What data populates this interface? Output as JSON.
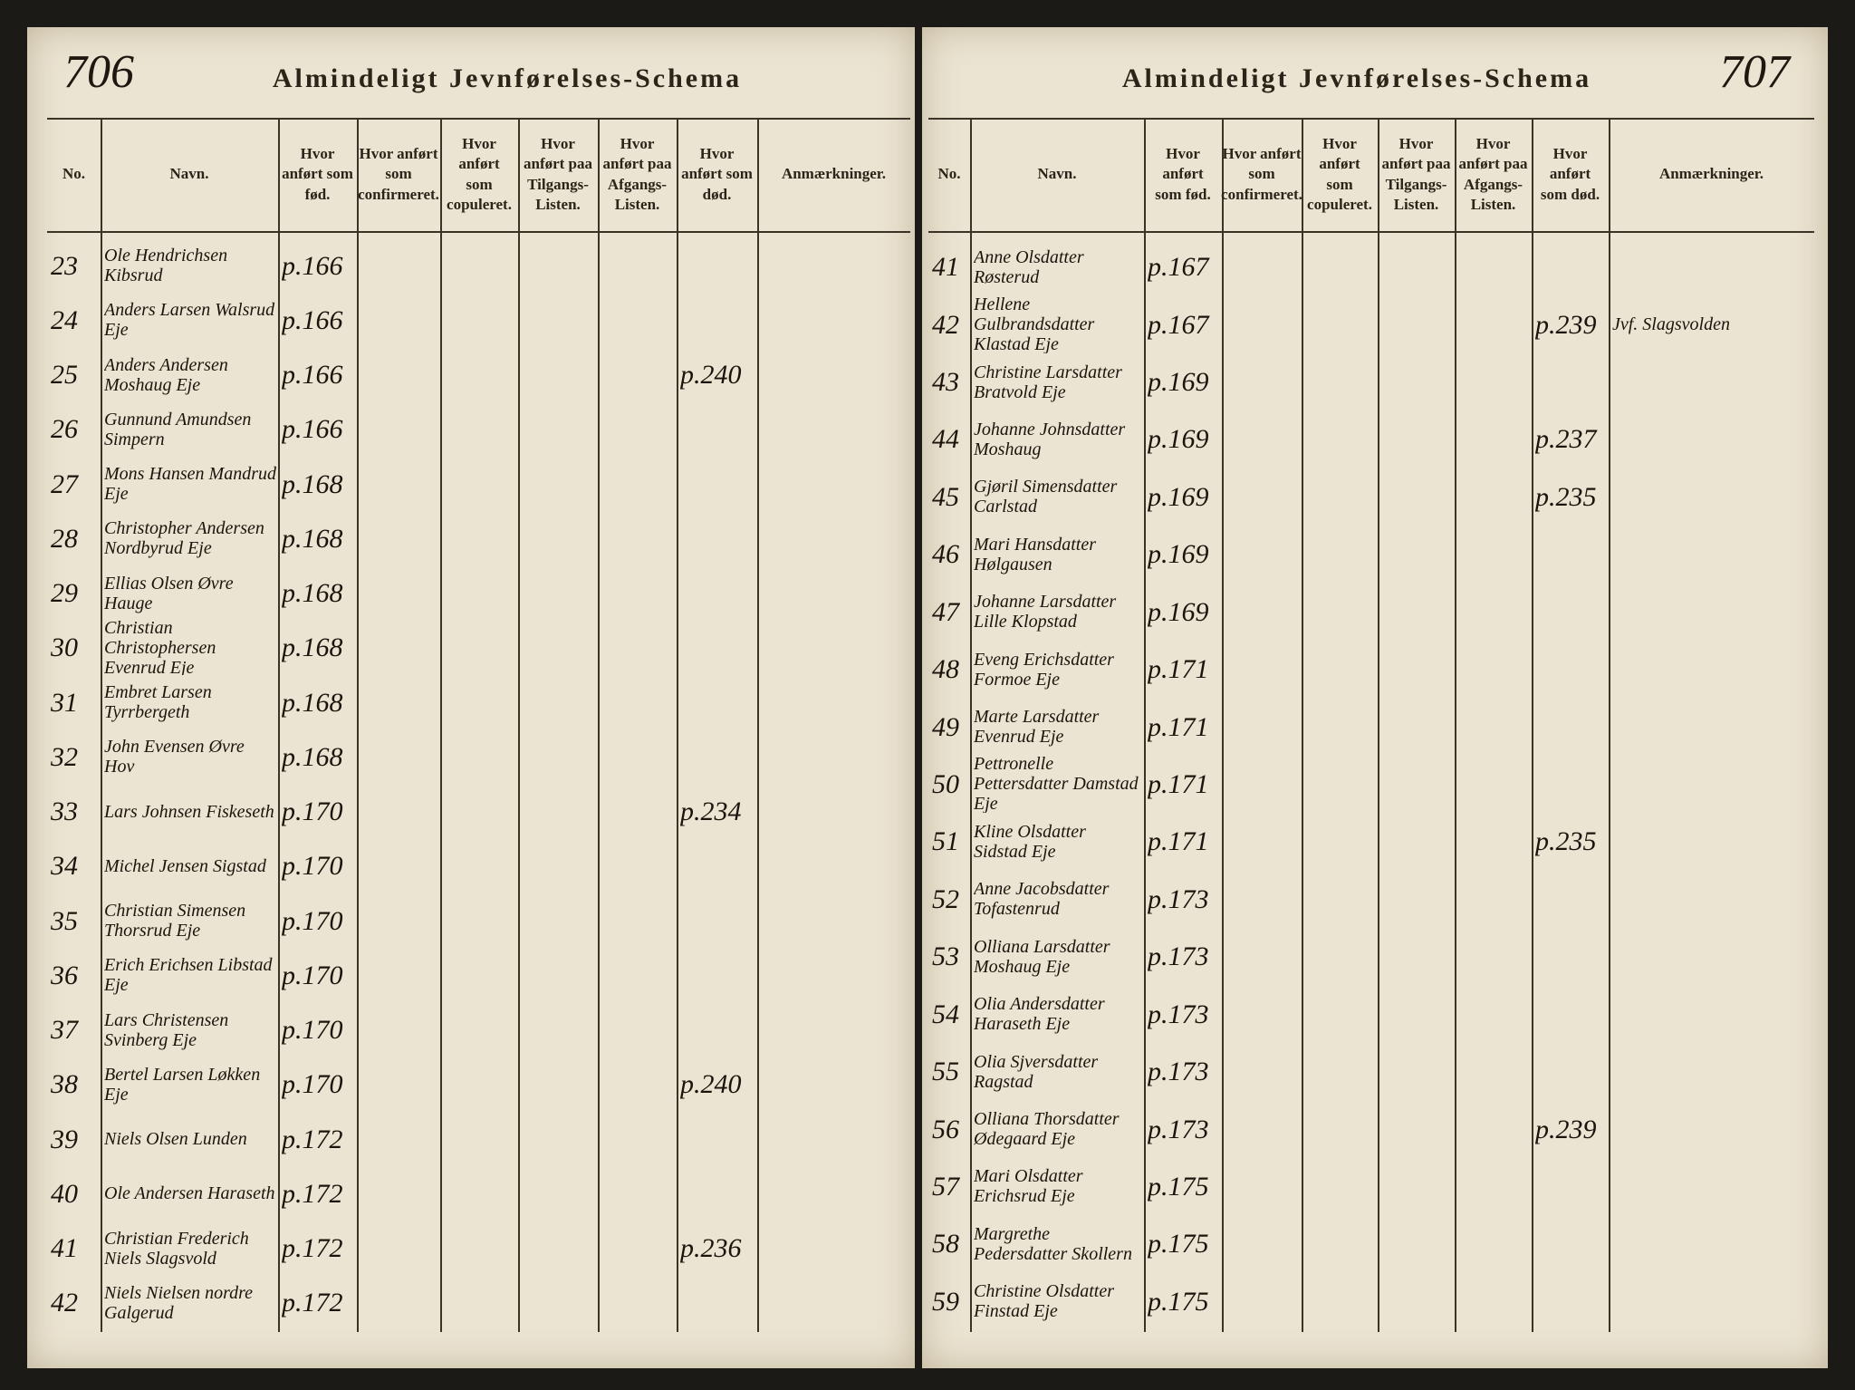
{
  "pages": [
    {
      "page_number": "706",
      "title": "Almindeligt Jevnførelses-Schema",
      "columns": [
        "No.",
        "Navn.",
        "Hvor anført som fød.",
        "Hvor anført som confirmeret.",
        "Hvor anført som copuleret.",
        "Hvor anført paa Tilgangs-Listen.",
        "Hvor anført paa Afgangs-Listen.",
        "Hvor anført som død.",
        "Anmærkninger."
      ],
      "rows": [
        {
          "no": "23",
          "name": "Ole Hendrichsen Kibsrud",
          "born": "p.166"
        },
        {
          "no": "24",
          "name": "Anders Larsen Walsrud Eje",
          "born": "p.166"
        },
        {
          "no": "25",
          "name": "Anders Andersen Moshaug Eje",
          "born": "p.166",
          "died": "p.240"
        },
        {
          "no": "26",
          "name": "Gunnund Amundsen Simpern",
          "born": "p.166"
        },
        {
          "no": "27",
          "name": "Mons Hansen Mandrud Eje",
          "born": "p.168"
        },
        {
          "no": "28",
          "name": "Christopher Andersen Nordbyrud Eje",
          "born": "p.168"
        },
        {
          "no": "29",
          "name": "Ellias Olsen Øvre Hauge",
          "born": "p.168"
        },
        {
          "no": "30",
          "name": "Christian Christophersen Evenrud Eje",
          "born": "p.168"
        },
        {
          "no": "31",
          "name": "Embret Larsen Tyrrbergeth",
          "born": "p.168"
        },
        {
          "no": "32",
          "name": "John Evensen Øvre Hov",
          "born": "p.168"
        },
        {
          "no": "33",
          "name": "Lars Johnsen Fiskeseth",
          "born": "p.170",
          "died": "p.234"
        },
        {
          "no": "34",
          "name": "Michel Jensen Sigstad",
          "born": "p.170"
        },
        {
          "no": "35",
          "name": "Christian Simensen Thorsrud Eje",
          "born": "p.170"
        },
        {
          "no": "36",
          "name": "Erich Erichsen Libstad Eje",
          "born": "p.170"
        },
        {
          "no": "37",
          "name": "Lars Christensen Svinberg Eje",
          "born": "p.170"
        },
        {
          "no": "38",
          "name": "Bertel Larsen Løkken Eje",
          "born": "p.170",
          "died": "p.240"
        },
        {
          "no": "39",
          "name": "Niels Olsen Lunden",
          "born": "p.172"
        },
        {
          "no": "40",
          "name": "Ole Andersen Haraseth",
          "born": "p.172"
        },
        {
          "no": "41",
          "name": "Christian Frederich Niels Slagsvold",
          "born": "p.172",
          "died": "p.236"
        },
        {
          "no": "42",
          "name": "Niels Nielsen nordre Galgerud",
          "born": "p.172"
        }
      ]
    },
    {
      "page_number": "707",
      "title": "Almindeligt Jevnførelses-Schema",
      "columns": [
        "No.",
        "Navn.",
        "Hvor anført som fød.",
        "Hvor anført som confirmeret.",
        "Hvor anført som copuleret.",
        "Hvor anført paa Tilgangs-Listen.",
        "Hvor anført paa Afgangs-Listen.",
        "Hvor anført som død.",
        "Anmærkninger."
      ],
      "rows": [
        {
          "no": "41",
          "name": "Anne Olsdatter Røsterud",
          "born": "p.167"
        },
        {
          "no": "42",
          "name": "Hellene Gulbrandsdatter Klastad Eje",
          "born": "p.167",
          "died": "p.239",
          "remarks": "Jvf. Slagsvolden"
        },
        {
          "no": "43",
          "name": "Christine Larsdatter Bratvold Eje",
          "born": "p.169"
        },
        {
          "no": "44",
          "name": "Johanne Johnsdatter Moshaug",
          "born": "p.169",
          "died": "p.237"
        },
        {
          "no": "45",
          "name": "Gjøril Simensdatter Carlstad",
          "born": "p.169",
          "died": "p.235"
        },
        {
          "no": "46",
          "name": "Mari Hansdatter Hølgausen",
          "born": "p.169"
        },
        {
          "no": "47",
          "name": "Johanne Larsdatter Lille Klopstad",
          "born": "p.169"
        },
        {
          "no": "48",
          "name": "Eveng Erichsdatter Formoe Eje",
          "born": "p.171"
        },
        {
          "no": "49",
          "name": "Marte Larsdatter Evenrud Eje",
          "born": "p.171"
        },
        {
          "no": "50",
          "name": "Pettronelle Pettersdatter Damstad Eje",
          "born": "p.171"
        },
        {
          "no": "51",
          "name": "Kline Olsdatter Sidstad Eje",
          "born": "p.171",
          "died": "p.235"
        },
        {
          "no": "52",
          "name": "Anne Jacobsdatter Tofastenrud",
          "born": "p.173"
        },
        {
          "no": "53",
          "name": "Olliana Larsdatter Moshaug Eje",
          "born": "p.173"
        },
        {
          "no": "54",
          "name": "Olia Andersdatter Haraseth Eje",
          "born": "p.173"
        },
        {
          "no": "55",
          "name": "Olia Sjversdatter Ragstad",
          "born": "p.173"
        },
        {
          "no": "56",
          "name": "Olliana Thorsdatter Ødegaard Eje",
          "born": "p.173",
          "died": "p.239"
        },
        {
          "no": "57",
          "name": "Mari Olsdatter Erichsrud Eje",
          "born": "p.175"
        },
        {
          "no": "58",
          "name": "Margrethe Pedersdatter Skollern",
          "born": "p.175"
        },
        {
          "no": "59",
          "name": "Christine Olsdatter Finstad Eje",
          "born": "p.175"
        }
      ]
    }
  ]
}
